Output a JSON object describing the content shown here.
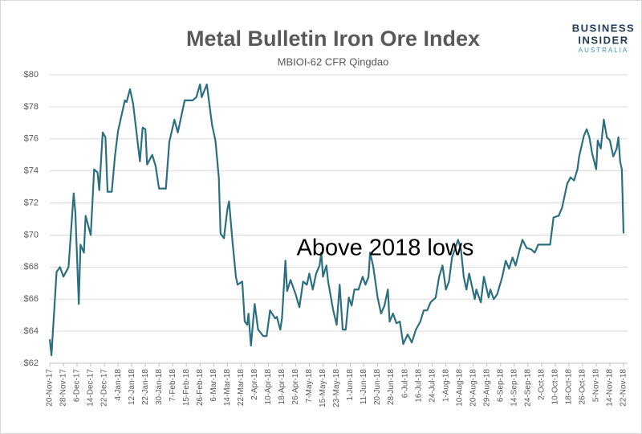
{
  "chart_data": {
    "type": "line",
    "title": "Metal Bulletin Iron Ore Index",
    "subtitle": "MBIOI-62 CFR Qingdao",
    "annotation": "Above 2018 lows",
    "logo": [
      "BUSINESS",
      "INSIDER",
      "AUSTRALIA"
    ],
    "color": "#2b6f80",
    "grid": true,
    "ylim": [
      62,
      80
    ],
    "yticks": [
      {
        "value": 62,
        "label": "$62"
      },
      {
        "value": 64,
        "label": "$64"
      },
      {
        "value": 66,
        "label": "$66"
      },
      {
        "value": 68,
        "label": "$68"
      },
      {
        "value": 70,
        "label": "$70"
      },
      {
        "value": 72,
        "label": "$72"
      },
      {
        "value": 74,
        "label": "$74"
      },
      {
        "value": 76,
        "label": "$76"
      },
      {
        "value": 78,
        "label": "$78"
      },
      {
        "value": 80,
        "label": "$80"
      }
    ],
    "xticks": [
      "20-Nov-17",
      "28-Nov-17",
      "6-Dec-17",
      "14-Dec-17",
      "22-Dec-17",
      "4-Jan-18",
      "12-Jan-18",
      "22-Jan-18",
      "30-Jan-18",
      "7-Feb-18",
      "15-Feb-18",
      "26-Feb-18",
      "6-Mar-18",
      "14-Mar-18",
      "22-Mar-18",
      "2-Apr-18",
      "10-Apr-18",
      "18-Apr-18",
      "26-Apr-18",
      "7-May-18",
      "15-May-18",
      "23-May-18",
      "1-Jun-18",
      "11-Jun-18",
      "20-Jun-18",
      "28-Jun-18",
      "6-Jul-18",
      "16-Jul-18",
      "24-Jul-18",
      "1-Aug-18",
      "10-Aug-18",
      "20-Aug-18",
      "29-Aug-18",
      "6-Sep-18",
      "14-Sep-18",
      "24-Sep-18",
      "2-Oct-18",
      "10-Oct-18",
      "18-Oct-18",
      "26-Oct-18",
      "5-Nov-18",
      "14-Nov-18",
      "22-Nov-18"
    ],
    "x": [
      "20-Nov-17",
      "21-Nov-17",
      "24-Nov-17",
      "26-Nov-17",
      "28-Nov-17",
      "1-Dec-17",
      "4-Dec-17",
      "5-Dec-17",
      "7-Dec-17",
      "8-Dec-17",
      "10-Dec-17",
      "11-Dec-17",
      "14-Dec-17",
      "16-Dec-17",
      "18-Dec-17",
      "19-Dec-17",
      "21-Dec-17",
      "23-Dec-17",
      "25-Dec-17",
      "29-Dec-17",
      "1-Jan-18",
      "4-Jan-18",
      "8-Jan-18",
      "9-Jan-18",
      "11-Jan-18",
      "13-Jan-18",
      "18-Jan-18",
      "20-Jan-18",
      "22-Jan-18",
      "23-Jan-18",
      "26-Jan-18",
      "28-Jan-18",
      "30-Jan-18",
      "3-Feb-18",
      "5-Feb-18",
      "8-Feb-18",
      "10-Feb-18",
      "14-Feb-18",
      "20-Feb-18",
      "23-Feb-18",
      "26-Feb-18",
      "27-Feb-18",
      "2-Mar-18",
      "5-Mar-18",
      "7-Mar-18",
      "9-Mar-18",
      "10-Mar-18",
      "12-Mar-18",
      "14-Mar-18",
      "15-Mar-18",
      "17-Mar-18",
      "19-Mar-18",
      "20-Mar-18",
      "23-Mar-18",
      "25-Mar-18",
      "27-Mar-18",
      "28-Mar-18",
      "30-Mar-18",
      "2-Apr-18",
      "4-Apr-18",
      "7-Apr-18",
      "9-Apr-18",
      "11-Apr-18",
      "14-Apr-18",
      "15-Apr-18",
      "17-Apr-18",
      "18-Apr-18",
      "20-Apr-18",
      "21-Apr-18",
      "23-Apr-18",
      "26-Apr-18",
      "29-Apr-18",
      "2-May-18",
      "5-May-18",
      "7-May-18",
      "9-May-18",
      "11-May-18",
      "13-May-18",
      "14-May-18",
      "15-May-18",
      "17-May-18",
      "18-May-18",
      "21-May-18",
      "23-May-18",
      "25-May-18",
      "27-May-18",
      "29-May-18",
      "31-May-18",
      "2-Jun-18",
      "4-Jun-18",
      "7-Jun-18",
      "10-Jun-18",
      "12-Jun-18",
      "14-Jun-18",
      "15-Jun-18",
      "17-Jun-18",
      "20-Jun-18",
      "22-Jun-18",
      "24-Jun-18",
      "26-Jun-18",
      "27-Jun-18",
      "29-Jun-18",
      "1-Jul-18",
      "3-Jul-18",
      "5-Jul-18",
      "8-Jul-18",
      "11-Jul-18",
      "14-Jul-18",
      "17-Jul-18",
      "19-Jul-18",
      "21-Jul-18",
      "23-Jul-18",
      "26-Jul-18",
      "28-Jul-18",
      "30-Jul-18",
      "1-Aug-18",
      "3-Aug-18",
      "5-Aug-18",
      "9-Aug-18",
      "11-Aug-18",
      "13-Aug-18",
      "15-Aug-18",
      "17-Aug-18",
      "21-Aug-18",
      "22-Aug-18",
      "25-Aug-18",
      "27-Aug-18",
      "30-Aug-18",
      "31-Aug-18",
      "2-Sep-18",
      "4-Sep-18",
      "7-Sep-18",
      "9-Sep-18",
      "11-Sep-18",
      "13-Sep-18",
      "15-Sep-18",
      "18-Sep-18",
      "20-Sep-18",
      "23-Sep-18",
      "26-Sep-18",
      "28-Sep-18",
      "30-Sep-18",
      "5-Oct-18",
      "7-Oct-18",
      "9-Oct-18",
      "12-Oct-18",
      "14-Oct-18",
      "17-Oct-18",
      "19-Oct-18",
      "21-Oct-18",
      "23-Oct-18",
      "24-Oct-18",
      "27-Oct-18",
      "29-Oct-18",
      "31-Oct-18",
      "2-Nov-18",
      "5-Nov-18",
      "6-Nov-18",
      "8-Nov-18",
      "10-Nov-18",
      "12-Nov-18",
      "14-Nov-18",
      "16-Nov-18",
      "18-Nov-18",
      "19-Nov-18",
      "20-Nov-18",
      "21-Nov-18",
      "22-Nov-18"
    ],
    "values": [
      63.5,
      62.5,
      67.7,
      68.0,
      67.4,
      68.0,
      72.6,
      71.4,
      65.7,
      69.4,
      68.9,
      71.2,
      70.0,
      74.1,
      73.9,
      72.8,
      76.4,
      76.1,
      72.7,
      72.7,
      74.9,
      76.5,
      78.4,
      78.3,
      79.1,
      78.2,
      74.6,
      76.7,
      76.6,
      74.4,
      75.0,
      74.3,
      72.9,
      72.9,
      75.8,
      77.2,
      76.4,
      78.4,
      78.4,
      78.6,
      79.4,
      78.6,
      79.4,
      76.9,
      75.9,
      73.6,
      70.1,
      69.8,
      71.6,
      72.1,
      69.6,
      67.4,
      66.9,
      67.1,
      64.6,
      64.4,
      65.1,
      63.1,
      65.7,
      64.1,
      63.7,
      63.7,
      65.3,
      64.8,
      64.9,
      64.1,
      64.8,
      68.4,
      66.5,
      67.2,
      66.3,
      65.5,
      67.1,
      66.9,
      67.6,
      66.6,
      67.6,
      68.1,
      68.9,
      67.4,
      68.1,
      67.1,
      65.3,
      64.4,
      66.9,
      64.1,
      64.1,
      66.1,
      65.6,
      66.6,
      66.6,
      67.4,
      66.9,
      67.4,
      68.9,
      68.1,
      66.1,
      65.1,
      65.6,
      66.6,
      64.6,
      65.1,
      64.5,
      64.6,
      63.2,
      63.8,
      63.3,
      64.1,
      64.6,
      65.3,
      65.3,
      65.8,
      66.1,
      67.4,
      68.1,
      66.6,
      67.1,
      68.6,
      69.7,
      69.1,
      67.4,
      66.6,
      67.6,
      66.0,
      66.6,
      65.8,
      67.4,
      66.1,
      66.6,
      66.0,
      66.3,
      67.4,
      68.4,
      67.9,
      68.6,
      68.1,
      69.1,
      69.7,
      69.2,
      69.1,
      68.9,
      69.4,
      69.4,
      69.4,
      71.1,
      71.2,
      71.7,
      73.2,
      73.6,
      73.4,
      74.1,
      74.9,
      76.2,
      76.6,
      76.1,
      75.1,
      74.1,
      75.9,
      75.4,
      77.2,
      76.1,
      75.9,
      74.9,
      75.4,
      76.1,
      74.6,
      74.1,
      70.1
    ]
  }
}
